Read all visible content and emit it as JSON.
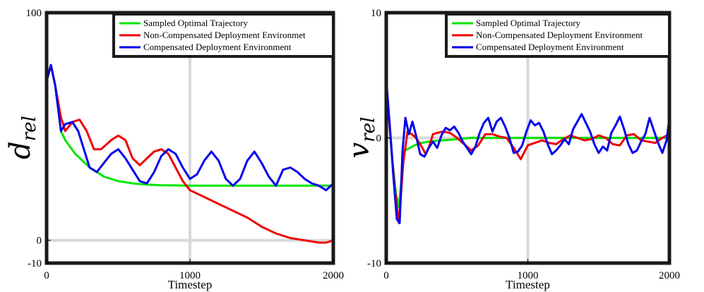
{
  "chart_data": [
    {
      "type": "line",
      "ylabel_main": "d",
      "ylabel_sub": "rel",
      "xlabel": "Timestep",
      "xlim": [
        0,
        2000
      ],
      "ylim": [
        -10,
        100
      ],
      "xticks": [
        "0",
        "1000",
        "2000"
      ],
      "yticks": [
        "-10",
        "0",
        "100"
      ],
      "xtick_values": [
        0,
        1000,
        2000
      ],
      "ytick_values": [
        -10,
        0,
        100
      ],
      "ref_x": 1000,
      "ref_y": 0,
      "series": [
        {
          "name": "Sampled Optimal Trajectory",
          "color": "#00e600",
          "x": [
            0,
            30,
            60,
            100,
            130,
            200,
            300,
            400,
            500,
            600,
            700,
            800,
            900,
            1000,
            1200,
            1400,
            1600,
            1800,
            2000
          ],
          "y": [
            70,
            77,
            68,
            48,
            44,
            38,
            32,
            28,
            26,
            25,
            24.5,
            24.2,
            24.1,
            24,
            24,
            24,
            24,
            24,
            24
          ]
        },
        {
          "name": "Non-Compensated Deployment Environmet",
          "color": "#ee0000",
          "x": [
            0,
            30,
            60,
            100,
            130,
            180,
            230,
            280,
            330,
            380,
            450,
            500,
            550,
            600,
            650,
            700,
            750,
            800,
            850,
            900,
            950,
            1000,
            1100,
            1200,
            1300,
            1400,
            1500,
            1600,
            1700,
            1800,
            1900,
            1950,
            2000
          ],
          "y": [
            70,
            77,
            68,
            54,
            48,
            52,
            53,
            48,
            40,
            40,
            44,
            46,
            44,
            36,
            33,
            36,
            39,
            40,
            38,
            32,
            26,
            22,
            19,
            16,
            13,
            10,
            6,
            3,
            1,
            0,
            -1,
            -1,
            0
          ]
        },
        {
          "name": "Compensated Deployment Environment",
          "color": "#0000ee",
          "x": [
            0,
            30,
            60,
            100,
            130,
            180,
            220,
            260,
            300,
            350,
            400,
            450,
            500,
            550,
            600,
            650,
            700,
            750,
            800,
            850,
            900,
            950,
            1000,
            1050,
            1100,
            1150,
            1200,
            1250,
            1300,
            1350,
            1400,
            1450,
            1500,
            1550,
            1600,
            1650,
            1700,
            1750,
            1800,
            1850,
            1900,
            1950,
            2000
          ],
          "y": [
            70,
            77,
            68,
            48,
            51,
            52,
            48,
            40,
            32,
            30,
            34,
            38,
            40,
            36,
            31,
            26,
            25,
            30,
            37,
            40,
            38,
            32,
            27,
            29,
            35,
            39,
            35,
            27,
            24,
            27,
            35,
            39,
            34,
            28,
            24,
            31,
            32,
            30,
            27,
            25,
            24,
            22,
            25
          ]
        }
      ]
    },
    {
      "type": "line",
      "ylabel_main": "v",
      "ylabel_sub": "rel",
      "xlabel": "Timestep",
      "xlim": [
        0,
        2000
      ],
      "ylim": [
        -10,
        10
      ],
      "xticks": [
        "0",
        "1000",
        "2000"
      ],
      "yticks": [
        "-10",
        "0",
        "10"
      ],
      "xtick_values": [
        0,
        1000,
        2000
      ],
      "ytick_values": [
        -10,
        0,
        10
      ],
      "ref_x": 1000,
      "ref_y": 0,
      "series": [
        {
          "name": "Sampled Optimal Trajectory",
          "color": "#00e600",
          "x": [
            0,
            20,
            45,
            70,
            90,
            110,
            130,
            150,
            200,
            250,
            300,
            400,
            500,
            600,
            700,
            800,
            1000,
            1500,
            2000
          ],
          "y": [
            4.5,
            1.5,
            -2,
            -4.5,
            -5.5,
            -3,
            -1,
            -0.9,
            -0.6,
            -0.4,
            -0.3,
            -0.2,
            -0.1,
            0,
            0,
            0,
            0,
            0,
            0
          ]
        },
        {
          "name": "Non-Compensated Deployment Environment",
          "color": "#ee0000",
          "x": [
            0,
            30,
            60,
            90,
            120,
            150,
            180,
            210,
            240,
            280,
            300,
            330,
            360,
            400,
            450,
            500,
            550,
            600,
            650,
            700,
            750,
            800,
            850,
            900,
            950,
            1000,
            1050,
            1100,
            1150,
            1200,
            1250,
            1300,
            1350,
            1400,
            1450,
            1500,
            1550,
            1600,
            1650,
            1700,
            1750,
            1800,
            1850,
            1900,
            1950,
            2000
          ],
          "y": [
            4.5,
            0,
            -4,
            -6.8,
            -2,
            0.5,
            0.3,
            0,
            -0.5,
            -1.3,
            -0.8,
            0.3,
            0.4,
            0.5,
            0.4,
            0,
            -0.5,
            -1,
            -0.6,
            0.3,
            0.3,
            0.1,
            0,
            -0.8,
            -1.7,
            -0.6,
            -0.4,
            -0.2,
            -0.4,
            -0.5,
            -0.1,
            0.2,
            0,
            -0.2,
            -0.1,
            0.2,
            0,
            -0.5,
            -0.6,
            0.2,
            0.3,
            -0.2,
            -0.3,
            -0.4,
            0,
            0.3
          ]
        },
        {
          "name": "Compensated Deployment Environment",
          "color": "#0000ee",
          "x": [
            0,
            25,
            50,
            75,
            95,
            115,
            135,
            160,
            185,
            210,
            240,
            270,
            300,
            330,
            360,
            390,
            420,
            450,
            480,
            510,
            540,
            570,
            600,
            630,
            660,
            690,
            720,
            750,
            780,
            810,
            840,
            870,
            900,
            930,
            960,
            990,
            1020,
            1050,
            1080,
            1110,
            1140,
            1170,
            1200,
            1230,
            1260,
            1290,
            1320,
            1350,
            1380,
            1410,
            1440,
            1470,
            1500,
            1530,
            1560,
            1590,
            1620,
            1650,
            1680,
            1710,
            1740,
            1770,
            1800,
            1830,
            1860,
            1890,
            1920,
            1950,
            1980,
            2000
          ],
          "y": [
            4.7,
            1,
            -3,
            -6.5,
            -6.8,
            -1,
            1.6,
            0.3,
            1.3,
            0.2,
            -1.3,
            -1.5,
            -0.8,
            -0.3,
            -0.8,
            0.2,
            0.8,
            0.6,
            0.9,
            0.4,
            -0.3,
            -0.8,
            -1.3,
            -0.7,
            0.4,
            1.2,
            1.6,
            0.5,
            1.3,
            1.6,
            0.9,
            0,
            -1.2,
            -1.1,
            -0.6,
            0.5,
            1.4,
            1.0,
            1.2,
            0.5,
            -0.5,
            -1.3,
            -1.0,
            -0.6,
            -0.1,
            -0.5,
            0.7,
            1.3,
            1.9,
            1.2,
            0.5,
            -0.5,
            -1.2,
            -0.7,
            -1.0,
            0.4,
            1.0,
            1.7,
            0.7,
            -0.5,
            -1.2,
            -1.0,
            -0.3,
            0.3,
            1.6,
            0.6,
            -0.4,
            -1.2,
            -0.2,
            1.6
          ]
        }
      ]
    }
  ]
}
